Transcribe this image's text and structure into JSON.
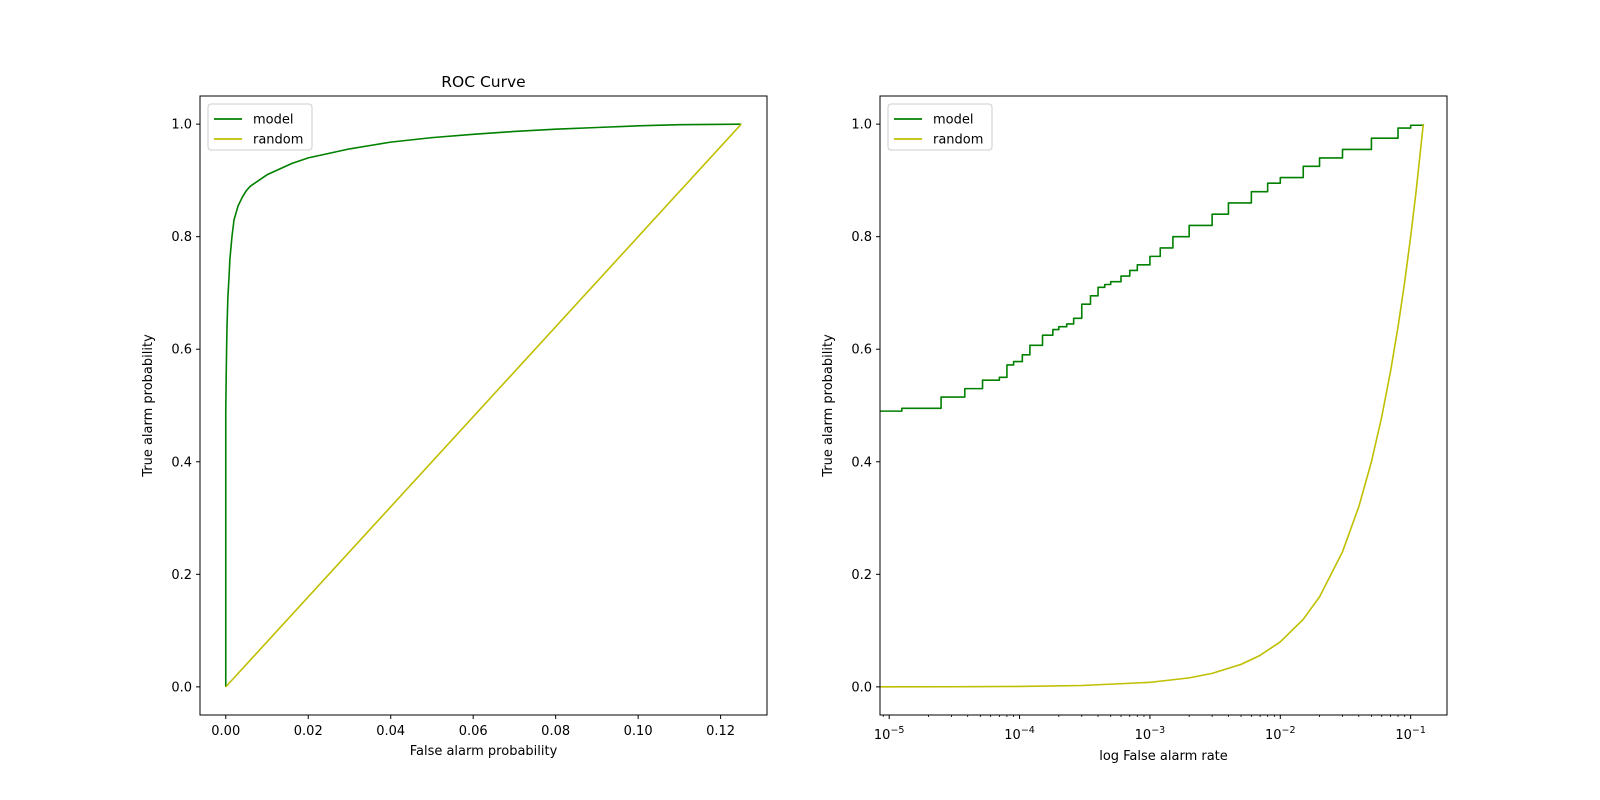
{
  "chart_data": [
    {
      "type": "line",
      "title": "ROC Curve",
      "xlabel": "False alarm probability",
      "ylabel": "True alarm probability",
      "xscale": "linear",
      "xlim": [
        -0.00625,
        0.13125
      ],
      "ylim": [
        -0.05,
        1.05
      ],
      "xticks": [
        0.0,
        0.02,
        0.04,
        0.06,
        0.08,
        0.1,
        0.12
      ],
      "xtick_labels": [
        "0.00",
        "0.02",
        "0.04",
        "0.06",
        "0.08",
        "0.10",
        "0.12"
      ],
      "yticks": [
        0.0,
        0.2,
        0.4,
        0.6,
        0.8,
        1.0
      ],
      "ytick_labels": [
        "0.0",
        "0.2",
        "0.4",
        "0.6",
        "0.8",
        "1.0"
      ],
      "grid": false,
      "legend": "upper-left",
      "series": [
        {
          "name": "model",
          "color": "#008000",
          "x": [
            0.0,
            0.0,
            0.0001,
            0.0002,
            0.0003,
            0.0005,
            0.0008,
            0.001,
            0.0015,
            0.002,
            0.003,
            0.004,
            0.005,
            0.006,
            0.008,
            0.01,
            0.013,
            0.016,
            0.02,
            0.025,
            0.03,
            0.035,
            0.04,
            0.05,
            0.06,
            0.07,
            0.08,
            0.09,
            0.1,
            0.11,
            0.125
          ],
          "y": [
            0.0,
            0.49,
            0.55,
            0.6,
            0.64,
            0.69,
            0.73,
            0.76,
            0.8,
            0.83,
            0.855,
            0.87,
            0.882,
            0.89,
            0.9,
            0.91,
            0.92,
            0.93,
            0.94,
            0.948,
            0.956,
            0.962,
            0.968,
            0.976,
            0.982,
            0.987,
            0.991,
            0.994,
            0.997,
            0.999,
            1.0
          ]
        },
        {
          "name": "random",
          "color": "#bfbf00",
          "x": [
            0.0,
            0.125
          ],
          "y": [
            0.0,
            1.0
          ]
        }
      ]
    },
    {
      "type": "line",
      "title": "",
      "xlabel": "log False alarm rate",
      "ylabel": "True alarm probability",
      "xscale": "log",
      "xlim": [
        8.5e-06,
        0.19
      ],
      "ylim": [
        -0.05,
        1.05
      ],
      "xticks": [
        1e-05,
        0.0001,
        0.001,
        0.01,
        0.1
      ],
      "xtick_labels": [
        {
          "base": "10",
          "exp": "−5"
        },
        {
          "base": "10",
          "exp": "−4"
        },
        {
          "base": "10",
          "exp": "−3"
        },
        {
          "base": "10",
          "exp": "−2"
        },
        {
          "base": "10",
          "exp": "−1"
        }
      ],
      "yticks": [
        0.0,
        0.2,
        0.4,
        0.6,
        0.8,
        1.0
      ],
      "ytick_labels": [
        "0.0",
        "0.2",
        "0.4",
        "0.6",
        "0.8",
        "1.0"
      ],
      "grid": false,
      "legend": "upper-left",
      "series": [
        {
          "name": "model",
          "color": "#008000",
          "step": true,
          "x": [
            8.5e-06,
            1.25e-05,
            2.5e-05,
            3.8e-05,
            5.2e-05,
            7e-05,
            8e-05,
            9e-05,
            0.000105,
            0.00012,
            0.00015,
            0.00018,
            0.0002,
            0.00023,
            0.00026,
            0.0003,
            0.00035,
            0.0004,
            0.00045,
            0.0005,
            0.0006,
            0.0007,
            0.0008,
            0.001,
            0.0012,
            0.0015,
            0.002,
            0.003,
            0.004,
            0.006,
            0.008,
            0.01,
            0.015,
            0.02,
            0.03,
            0.05,
            0.08,
            0.1,
            0.125
          ],
          "y": [
            0.49,
            0.495,
            0.515,
            0.53,
            0.545,
            0.55,
            0.572,
            0.578,
            0.59,
            0.607,
            0.625,
            0.635,
            0.64,
            0.645,
            0.655,
            0.68,
            0.695,
            0.71,
            0.715,
            0.72,
            0.73,
            0.74,
            0.75,
            0.765,
            0.78,
            0.8,
            0.82,
            0.84,
            0.86,
            0.88,
            0.895,
            0.905,
            0.925,
            0.94,
            0.955,
            0.975,
            0.993,
            0.998,
            1.0
          ]
        },
        {
          "name": "random",
          "color": "#bfbf00",
          "x": [
            8.5e-06,
            1e-05,
            3e-05,
            0.0001,
            0.0003,
            0.001,
            0.002,
            0.003,
            0.005,
            0.007,
            0.01,
            0.015,
            0.02,
            0.03,
            0.04,
            0.05,
            0.06,
            0.07,
            0.08,
            0.09,
            0.1,
            0.11,
            0.125
          ],
          "y": [
            0.0001,
            0.0001,
            0.0002,
            0.0008,
            0.0024,
            0.008,
            0.016,
            0.024,
            0.04,
            0.056,
            0.08,
            0.12,
            0.16,
            0.24,
            0.32,
            0.4,
            0.48,
            0.56,
            0.64,
            0.72,
            0.8,
            0.88,
            1.0
          ]
        }
      ]
    }
  ]
}
